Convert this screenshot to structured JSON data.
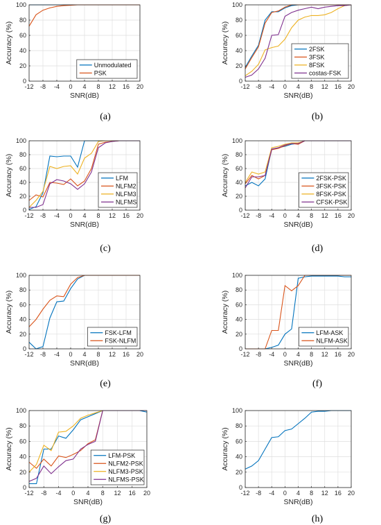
{
  "colors": [
    "#0072BD",
    "#D95319",
    "#EDB120",
    "#7E2F8E"
  ],
  "chart_data": [
    {
      "type": "line",
      "caption": "(a)",
      "xlabel": "SNR(dB)",
      "ylabel": "Accuracy (%)",
      "x": [
        -12,
        -10,
        -8,
        -6,
        -4,
        -2,
        0,
        2,
        4,
        6,
        8,
        10,
        12,
        14,
        16,
        18,
        20
      ],
      "xticks": [
        -12,
        -8,
        -4,
        0,
        4,
        8,
        12,
        16,
        20
      ],
      "xlim": [
        -12,
        20
      ],
      "yticks": [
        0,
        20,
        40,
        60,
        80,
        100
      ],
      "ylim": [
        0,
        100
      ],
      "legend_position": "bottom-right",
      "series": [
        {
          "name": "Unmodulated",
          "values": [
            100,
            100,
            100,
            100,
            100,
            100,
            100,
            100,
            100,
            100,
            100,
            100,
            100,
            100,
            100,
            100,
            100
          ]
        },
        {
          "name": "PSK",
          "values": [
            72,
            87,
            93,
            96,
            98,
            99,
            99.5,
            100,
            100,
            100,
            100,
            100,
            100,
            100,
            100,
            100,
            100
          ]
        }
      ]
    },
    {
      "type": "line",
      "caption": "(b)",
      "xlabel": "SNR(dB)",
      "ylabel": "Accuracy (%)",
      "x": [
        -12,
        -10,
        -8,
        -6,
        -4,
        -2,
        0,
        2,
        4,
        6,
        8,
        10,
        12,
        14,
        16,
        18,
        20
      ],
      "xticks": [
        -12,
        -8,
        -4,
        0,
        4,
        8,
        12,
        16,
        20
      ],
      "xlim": [
        -12,
        20
      ],
      "yticks": [
        0,
        20,
        40,
        60,
        80,
        100
      ],
      "ylim": [
        0,
        100
      ],
      "legend_position": "bottom-right",
      "series": [
        {
          "name": "2FSK",
          "values": [
            18,
            33,
            47,
            80,
            91,
            91,
            96,
            99,
            100,
            100,
            100,
            100,
            100,
            100,
            100,
            100,
            100
          ]
        },
        {
          "name": "3FSK",
          "values": [
            16,
            31,
            45,
            76,
            90,
            92,
            97,
            100,
            100,
            100,
            100,
            100,
            100,
            100,
            100,
            100,
            100
          ]
        },
        {
          "name": "8FSK",
          "values": [
            7,
            13,
            22,
            41,
            44,
            46,
            55,
            70,
            80,
            84,
            86,
            86,
            87,
            90,
            95,
            99,
            100
          ]
        },
        {
          "name": "costas-FSK",
          "values": [
            5,
            8,
            16,
            30,
            60,
            61,
            85,
            90,
            93,
            95,
            97,
            95,
            97,
            98,
            99,
            99,
            100
          ]
        }
      ]
    },
    {
      "type": "line",
      "caption": "(c)",
      "xlabel": "SNR(dB)",
      "ylabel": "Accuracy (%)",
      "x": [
        -12,
        -10,
        -8,
        -6,
        -4,
        -2,
        0,
        2,
        4,
        6,
        8,
        10,
        12,
        14,
        16,
        18,
        20
      ],
      "xticks": [
        -12,
        -8,
        -4,
        0,
        4,
        8,
        12,
        16,
        20
      ],
      "xlim": [
        -12,
        20
      ],
      "yticks": [
        0,
        20,
        40,
        60,
        80,
        100
      ],
      "ylim": [
        0,
        100
      ],
      "legend_position": "bottom-right",
      "series": [
        {
          "name": "LFM",
          "values": [
            1,
            5,
            25,
            78,
            77,
            78,
            78,
            62,
            100,
            100,
            100,
            100,
            100,
            100,
            100,
            100,
            100
          ]
        },
        {
          "name": "NLFM2",
          "values": [
            14,
            22,
            19,
            40,
            39,
            37,
            45,
            35,
            42,
            60,
            95,
            98,
            99,
            100,
            100,
            100,
            100
          ]
        },
        {
          "name": "NLFM3",
          "values": [
            4,
            14,
            27,
            63,
            60,
            63,
            64,
            52,
            75,
            82,
            99,
            100,
            100,
            100,
            100,
            100,
            100
          ]
        },
        {
          "name": "NLFMS",
          "values": [
            4,
            4,
            8,
            38,
            44,
            42,
            38,
            30,
            38,
            55,
            90,
            97,
            99,
            100,
            100,
            100,
            100
          ]
        }
      ]
    },
    {
      "type": "line",
      "caption": "(d)",
      "xlabel": "SNR(dB)",
      "ylabel": "Accuracy (%)",
      "x": [
        -12,
        -10,
        -8,
        -6,
        -4,
        -2,
        0,
        2,
        4,
        6,
        8,
        10,
        12,
        14,
        16,
        18,
        20
      ],
      "xticks": [
        -12,
        -8,
        -4,
        0,
        4,
        8,
        12,
        16,
        20
      ],
      "xlim": [
        -12,
        20
      ],
      "yticks": [
        0,
        20,
        40,
        60,
        80,
        100
      ],
      "ylim": [
        0,
        100
      ],
      "legend_position": "bottom-right",
      "series": [
        {
          "name": "2FSK-PSK",
          "values": [
            35,
            40,
            35,
            45,
            88,
            90,
            92,
            95,
            96,
            100,
            100,
            100,
            100,
            100,
            100,
            100,
            100
          ]
        },
        {
          "name": "3FSK-PSK",
          "values": [
            38,
            50,
            45,
            50,
            87,
            89,
            93,
            96,
            95,
            100,
            100,
            100,
            100,
            100,
            100,
            100,
            100
          ]
        },
        {
          "name": "8FSK-PSK",
          "values": [
            40,
            55,
            52,
            55,
            90,
            92,
            95,
            97,
            97,
            100,
            100,
            100,
            100,
            100,
            100,
            100,
            100
          ]
        },
        {
          "name": "CFSK-PSK",
          "values": [
            32,
            48,
            48,
            50,
            88,
            90,
            94,
            96,
            96,
            100,
            100,
            100,
            100,
            100,
            100,
            100,
            100
          ]
        }
      ]
    },
    {
      "type": "line",
      "caption": "(e)",
      "xlabel": "SNR(dB)",
      "ylabel": "Accuracy (%)",
      "x": [
        -12,
        -10,
        -8,
        -6,
        -4,
        -2,
        0,
        2,
        4,
        6,
        8,
        10,
        12,
        14,
        16,
        18,
        20
      ],
      "xticks": [
        -12,
        -8,
        -4,
        0,
        4,
        8,
        12,
        16,
        20
      ],
      "xlim": [
        -12,
        20
      ],
      "yticks": [
        0,
        20,
        40,
        60,
        80,
        100
      ],
      "ylim": [
        0,
        100
      ],
      "legend_position": "bottom-right",
      "series": [
        {
          "name": "FSK-LFM",
          "values": [
            9,
            0,
            3,
            42,
            64,
            65,
            82,
            95,
            100,
            100,
            100,
            100,
            100,
            100,
            100,
            100,
            100
          ]
        },
        {
          "name": "FSK-NLFM",
          "values": [
            30,
            40,
            54,
            66,
            72,
            71,
            88,
            97,
            100,
            100,
            100,
            100,
            100,
            100,
            100,
            100,
            100
          ]
        }
      ]
    },
    {
      "type": "line",
      "caption": "(f)",
      "xlabel": "SNR(dB)",
      "ylabel": "Accuracy (%)",
      "x": [
        -12,
        -10,
        -8,
        -6,
        -4,
        -2,
        0,
        2,
        4,
        6,
        8,
        10,
        12,
        14,
        16,
        18,
        20
      ],
      "xticks": [
        -12,
        -8,
        -4,
        0,
        4,
        8,
        12,
        16,
        20
      ],
      "xlim": [
        -12,
        20
      ],
      "yticks": [
        0,
        20,
        40,
        60,
        80,
        100
      ],
      "ylim": [
        0,
        100
      ],
      "legend_position": "bottom-right",
      "series": [
        {
          "name": "LFM-ASK",
          "values": [
            0,
            0,
            0,
            0,
            2,
            5,
            20,
            27,
            96,
            98,
            99,
            99,
            99,
            99,
            99,
            98,
            98
          ]
        },
        {
          "name": "NLFM-ASK",
          "values": [
            0,
            0,
            0,
            0,
            25,
            25,
            86,
            79,
            86,
            100,
            100,
            100,
            100,
            100,
            100,
            100,
            100
          ]
        }
      ]
    },
    {
      "type": "line",
      "caption": "(g)",
      "xlabel": "SNR(dB)",
      "ylabel": "Accuracy (%)",
      "x": [
        -12,
        -10,
        -8,
        -6,
        -4,
        -2,
        0,
        2,
        4,
        6,
        8,
        10,
        12,
        14,
        16,
        18,
        20
      ],
      "xticks": [
        -12,
        -8,
        -4,
        0,
        4,
        8,
        12,
        16,
        20
      ],
      "xlim": [
        -12,
        20
      ],
      "yticks": [
        0,
        20,
        40,
        60,
        80,
        100
      ],
      "ylim": [
        0,
        100
      ],
      "legend_position": "bottom-right",
      "series": [
        {
          "name": "LFM-PSK",
          "values": [
            5,
            5,
            50,
            50,
            67,
            64,
            75,
            88,
            92,
            96,
            100,
            100,
            100,
            100,
            100,
            100,
            98
          ]
        },
        {
          "name": "NLFM2-PSK",
          "values": [
            33,
            25,
            37,
            28,
            41,
            39,
            43,
            48,
            57,
            62,
            100,
            100,
            100,
            100,
            100,
            100,
            100
          ]
        },
        {
          "name": "NLFM3-PSK",
          "values": [
            20,
            30,
            55,
            48,
            72,
            73,
            80,
            90,
            94,
            97,
            100,
            100,
            100,
            100,
            100,
            100,
            100
          ]
        },
        {
          "name": "NLFMS-PSK",
          "values": [
            8,
            12,
            28,
            18,
            27,
            35,
            37,
            50,
            56,
            60,
            100,
            100,
            100,
            100,
            100,
            100,
            100
          ]
        }
      ]
    },
    {
      "type": "line",
      "caption": "(h)",
      "xlabel": "SNR(dB)",
      "ylabel": "Accuracy (%)",
      "x": [
        -12,
        -10,
        -8,
        -6,
        -4,
        -2,
        0,
        2,
        4,
        6,
        8,
        10,
        12,
        14,
        16,
        18,
        20
      ],
      "xticks": [
        -12,
        -8,
        -4,
        0,
        4,
        8,
        12,
        16,
        20
      ],
      "xlim": [
        -12,
        20
      ],
      "yticks": [
        0,
        20,
        40,
        60,
        80,
        100
      ],
      "ylim": [
        0,
        100
      ],
      "series": [
        {
          "values": [
            24,
            28,
            35,
            50,
            65,
            66,
            74,
            76,
            83,
            90,
            98,
            99,
            99,
            100,
            100,
            100,
            100
          ]
        }
      ]
    }
  ]
}
